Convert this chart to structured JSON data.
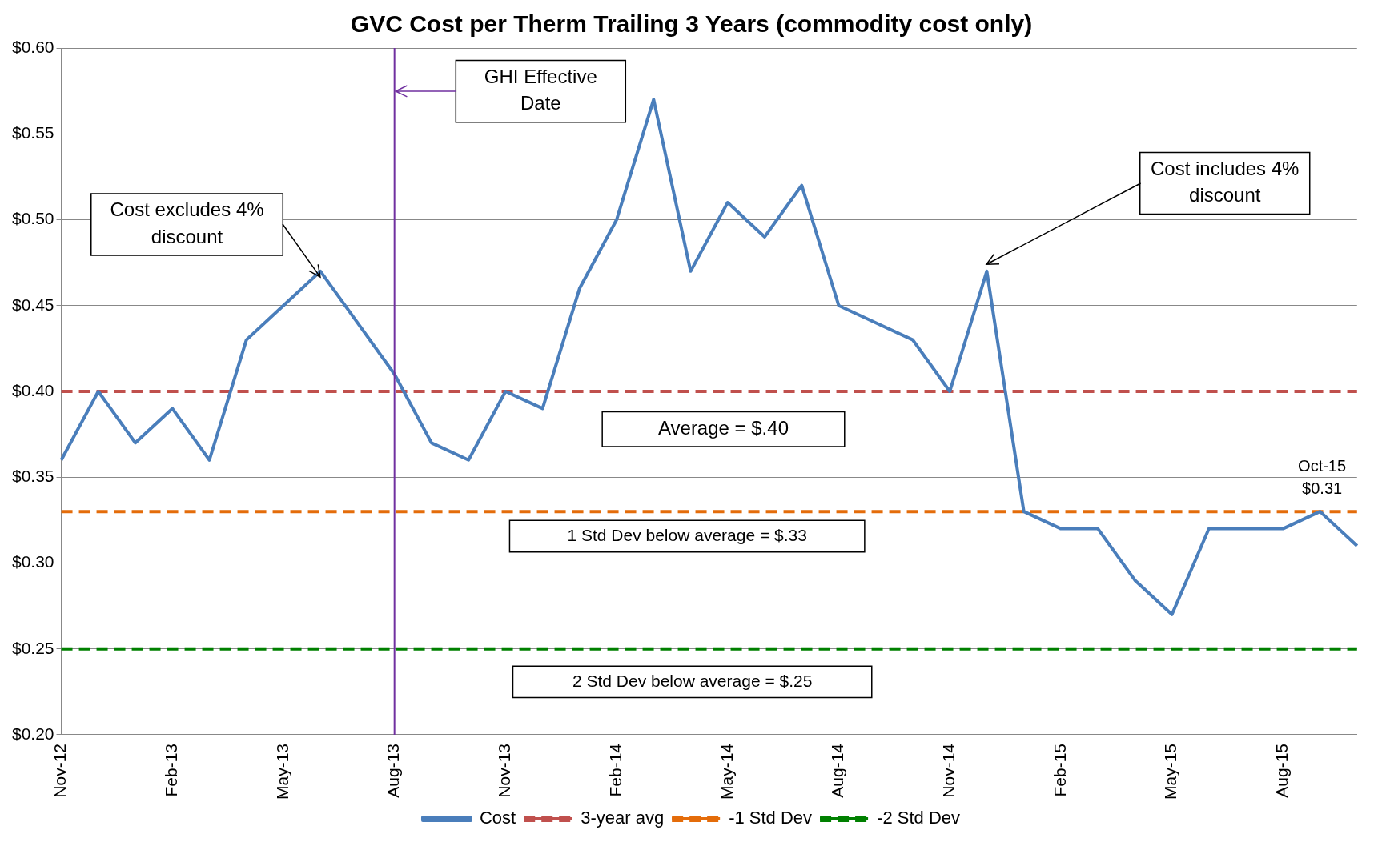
{
  "chart_data": {
    "type": "line",
    "title": "GVC Cost per Therm Trailing 3 Years (commodity cost only)",
    "categories": [
      "Nov-12",
      null,
      null,
      "Feb-13",
      null,
      null,
      "May-13",
      null,
      null,
      "Aug-13",
      null,
      null,
      "Nov-13",
      null,
      null,
      "Feb-14",
      null,
      null,
      "May-14",
      null,
      null,
      "Aug-14",
      null,
      null,
      "Nov-14",
      null,
      null,
      "Feb-15",
      null,
      null,
      "May-15",
      null,
      null,
      "Aug-15",
      null,
      null
    ],
    "series": [
      {
        "name": "Cost",
        "color": "#4a7ebb",
        "line_style": "solid",
        "values": [
          0.36,
          0.4,
          0.37,
          0.39,
          0.36,
          0.43,
          0.45,
          0.47,
          0.44,
          0.41,
          0.37,
          0.36,
          0.4,
          0.39,
          0.46,
          0.5,
          0.57,
          0.47,
          0.51,
          0.49,
          0.52,
          0.45,
          0.44,
          0.43,
          0.4,
          0.47,
          0.33,
          0.32,
          0.32,
          0.29,
          0.27,
          0.32,
          0.32,
          0.32,
          0.33,
          0.31
        ]
      },
      {
        "name": "3-year avg",
        "color": "#c0504d",
        "line_style": "dashed",
        "values": [
          0.4,
          0.4,
          0.4,
          0.4,
          0.4,
          0.4,
          0.4,
          0.4,
          0.4,
          0.4,
          0.4,
          0.4,
          0.4,
          0.4,
          0.4,
          0.4,
          0.4,
          0.4,
          0.4,
          0.4,
          0.4,
          0.4,
          0.4,
          0.4,
          0.4,
          0.4,
          0.4,
          0.4,
          0.4,
          0.4,
          0.4,
          0.4,
          0.4,
          0.4,
          0.4,
          0.4
        ]
      },
      {
        "name": "-1 Std Dev",
        "color": "#e46c0a",
        "line_style": "dashed",
        "values": [
          0.33,
          0.33,
          0.33,
          0.33,
          0.33,
          0.33,
          0.33,
          0.33,
          0.33,
          0.33,
          0.33,
          0.33,
          0.33,
          0.33,
          0.33,
          0.33,
          0.33,
          0.33,
          0.33,
          0.33,
          0.33,
          0.33,
          0.33,
          0.33,
          0.33,
          0.33,
          0.33,
          0.33,
          0.33,
          0.33,
          0.33,
          0.33,
          0.33,
          0.33,
          0.33,
          0.33
        ]
      },
      {
        "name": "-2 Std Dev",
        "color": "#008000",
        "line_style": "dashed",
        "values": [
          0.25,
          0.25,
          0.25,
          0.25,
          0.25,
          0.25,
          0.25,
          0.25,
          0.25,
          0.25,
          0.25,
          0.25,
          0.25,
          0.25,
          0.25,
          0.25,
          0.25,
          0.25,
          0.25,
          0.25,
          0.25,
          0.25,
          0.25,
          0.25,
          0.25,
          0.25,
          0.25,
          0.25,
          0.25,
          0.25,
          0.25,
          0.25,
          0.25,
          0.25,
          0.25,
          0.25
        ]
      }
    ],
    "ylim": [
      0.2,
      0.6
    ],
    "yticks": [
      {
        "value": 0.2,
        "label": "$0.20"
      },
      {
        "value": 0.25,
        "label": "$0.25"
      },
      {
        "value": 0.3,
        "label": "$0.30"
      },
      {
        "value": 0.35,
        "label": "$0.35"
      },
      {
        "value": 0.4,
        "label": "$0.40"
      },
      {
        "value": 0.45,
        "label": "$0.45"
      },
      {
        "value": 0.5,
        "label": "$0.50"
      },
      {
        "value": 0.55,
        "label": "$0.55"
      },
      {
        "value": 0.6,
        "label": "$0.60"
      }
    ],
    "grid": "y",
    "legend": "bottom",
    "marker": "none",
    "ref_lines": [
      {
        "axis": "x",
        "value": "Aug-13",
        "color": "#7030a0"
      }
    ],
    "annotations": [
      "GHI Effective Date",
      "Cost excludes 4% discount",
      "Cost includes 4% discount",
      "Average = $.40",
      "1 Std Dev below average = $.33",
      "2 Std Dev below average = $.25",
      "Oct-15 $0.31"
    ]
  }
}
